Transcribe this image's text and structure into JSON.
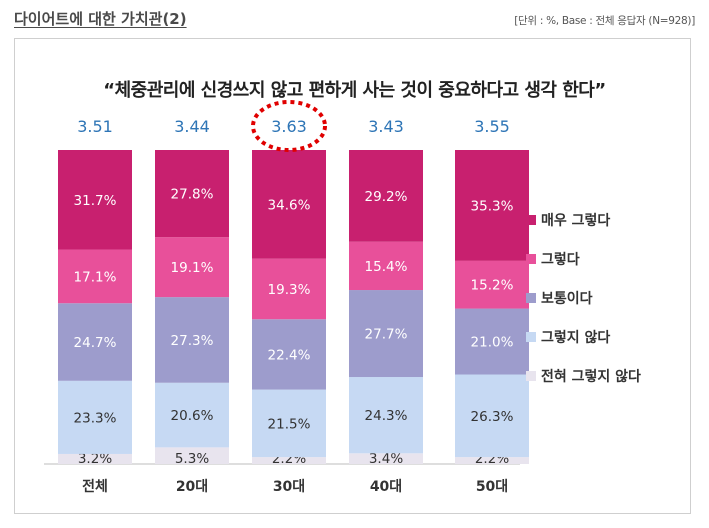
{
  "header": {
    "title": "다이어트에 대한 가치관(2)",
    "unit_note": "[단위 : %, Base : 전체 응답자 (N=928)]"
  },
  "chart_data": {
    "type": "bar",
    "stacked": true,
    "title": "“체중관리에 신경쓰지 않고 편하게 사는 것이 중요하다고 생각 한다”",
    "categories": [
      "전체",
      "20대",
      "30대",
      "40대",
      "50대"
    ],
    "averages": [
      "3.51",
      "3.44",
      "3.63",
      "3.43",
      "3.55"
    ],
    "highlighted_category": "30대",
    "series": [
      {
        "name": "전혀 그렇지 않다",
        "color": "#e8e4ee",
        "label_color": "#333333",
        "values": [
          3.2,
          5.3,
          2.2,
          3.4,
          2.2
        ]
      },
      {
        "name": "그렇지 않다",
        "color": "#c6d9f3",
        "label_color": "#333333",
        "values": [
          23.3,
          20.6,
          21.5,
          24.3,
          26.3
        ]
      },
      {
        "name": "보통이다",
        "color": "#9d9ccc",
        "label_color": "#ffffff",
        "values": [
          24.7,
          27.3,
          22.4,
          27.7,
          21.0
        ]
      },
      {
        "name": "그렇다",
        "color": "#e8509a",
        "label_color": "#ffffff",
        "values": [
          17.1,
          19.1,
          19.3,
          15.4,
          15.2
        ]
      },
      {
        "name": "매우 그렇다",
        "color": "#c8206f",
        "label_color": "#ffffff",
        "values": [
          31.7,
          27.8,
          34.6,
          29.2,
          35.3
        ]
      }
    ],
    "colors": {
      "average": "#2e75b6",
      "highlight": "#e00000"
    }
  },
  "legend": [
    {
      "label": "매우 그렇다",
      "color": "#c8206f"
    },
    {
      "label": "그렇다",
      "color": "#e8509a"
    },
    {
      "label": "보통이다",
      "color": "#9d9ccc"
    },
    {
      "label": "그렇지 않다",
      "color": "#c6d9f3"
    },
    {
      "label": "전혀 그렇지 않다",
      "color": "#e8e4ee"
    }
  ]
}
